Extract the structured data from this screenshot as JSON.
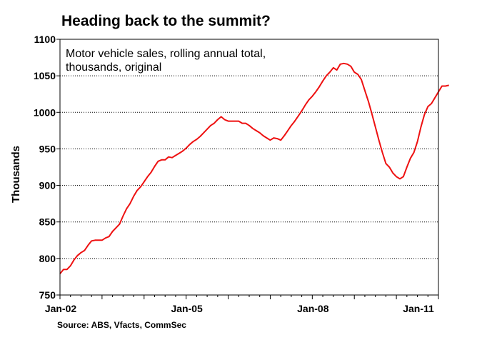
{
  "chart_data": {
    "type": "line",
    "title": "Heading back to the summit?",
    "subtitle_lines": [
      "Motor vehicle sales, rolling annual total,",
      "thousands, original"
    ],
    "xlabel": "",
    "ylabel": "Thousands",
    "source": "Source:  ABS, Vfacts, CommSec",
    "ylim": [
      750,
      1100
    ],
    "yticks": [
      750,
      800,
      850,
      900,
      950,
      1000,
      1050,
      1100
    ],
    "xlim": [
      "2002-01",
      "2011-01"
    ],
    "xticks": [
      {
        "label": "Jan-02",
        "date": "2002-01"
      },
      {
        "label": "Jan-05",
        "date": "2005-01"
      },
      {
        "label": "Jan-08",
        "date": "2008-01"
      },
      {
        "label": "Jan-11",
        "date": "2011-01"
      }
    ],
    "grid": {
      "horizontal": true,
      "vertical": false
    },
    "colors": {
      "line": "#ee1111",
      "grid": "#000000",
      "frame": "#000000"
    },
    "series": [
      {
        "color": "#ee1111",
        "points": [
          [
            "2002-01",
            779
          ],
          [
            "2002-02",
            785
          ],
          [
            "2002-03",
            785
          ],
          [
            "2002-04",
            790
          ],
          [
            "2002-05",
            798
          ],
          [
            "2002-06",
            804
          ],
          [
            "2002-07",
            808
          ],
          [
            "2002-08",
            811
          ],
          [
            "2002-09",
            818
          ],
          [
            "2002-10",
            824
          ],
          [
            "2002-11",
            825
          ],
          [
            "2002-12",
            825
          ],
          [
            "2003-01",
            825
          ],
          [
            "2003-02",
            828
          ],
          [
            "2003-03",
            830
          ],
          [
            "2003-04",
            837
          ],
          [
            "2003-05",
            842
          ],
          [
            "2003-06",
            847
          ],
          [
            "2003-07",
            858
          ],
          [
            "2003-08",
            868
          ],
          [
            "2003-09",
            875
          ],
          [
            "2003-10",
            885
          ],
          [
            "2003-11",
            893
          ],
          [
            "2003-12",
            898
          ],
          [
            "2004-01",
            905
          ],
          [
            "2004-02",
            912
          ],
          [
            "2004-03",
            918
          ],
          [
            "2004-04",
            926
          ],
          [
            "2004-05",
            933
          ],
          [
            "2004-06",
            935
          ],
          [
            "2004-07",
            935
          ],
          [
            "2004-08",
            939
          ],
          [
            "2004-09",
            938
          ],
          [
            "2004-10",
            941
          ],
          [
            "2004-11",
            944
          ],
          [
            "2004-12",
            947
          ],
          [
            "2005-01",
            951
          ],
          [
            "2005-02",
            956
          ],
          [
            "2005-03",
            960
          ],
          [
            "2005-04",
            963
          ],
          [
            "2005-05",
            967
          ],
          [
            "2005-06",
            972
          ],
          [
            "2005-07",
            977
          ],
          [
            "2005-08",
            982
          ],
          [
            "2005-09",
            985
          ],
          [
            "2005-10",
            990
          ],
          [
            "2005-11",
            994
          ],
          [
            "2005-12",
            990
          ],
          [
            "2006-01",
            988
          ],
          [
            "2006-02",
            988
          ],
          [
            "2006-03",
            988
          ],
          [
            "2006-04",
            988
          ],
          [
            "2006-05",
            985
          ],
          [
            "2006-06",
            985
          ],
          [
            "2006-07",
            982
          ],
          [
            "2006-08",
            978
          ],
          [
            "2006-09",
            975
          ],
          [
            "2006-10",
            972
          ],
          [
            "2006-11",
            968
          ],
          [
            "2006-12",
            965
          ],
          [
            "2007-01",
            962
          ],
          [
            "2007-02",
            965
          ],
          [
            "2007-03",
            964
          ],
          [
            "2007-04",
            962
          ],
          [
            "2007-05",
            968
          ],
          [
            "2007-06",
            975
          ],
          [
            "2007-07",
            982
          ],
          [
            "2007-08",
            988
          ],
          [
            "2007-09",
            995
          ],
          [
            "2007-10",
            1002
          ],
          [
            "2007-11",
            1010
          ],
          [
            "2007-12",
            1017
          ],
          [
            "2008-01",
            1022
          ],
          [
            "2008-02",
            1028
          ],
          [
            "2008-03",
            1035
          ],
          [
            "2008-04",
            1043
          ],
          [
            "2008-05",
            1050
          ],
          [
            "2008-06",
            1055
          ],
          [
            "2008-07",
            1061
          ],
          [
            "2008-08",
            1058
          ],
          [
            "2008-09",
            1066
          ],
          [
            "2008-10",
            1067
          ],
          [
            "2008-11",
            1066
          ],
          [
            "2008-12",
            1063
          ],
          [
            "2009-01",
            1055
          ],
          [
            "2009-02",
            1052
          ],
          [
            "2009-03",
            1045
          ],
          [
            "2009-04",
            1030
          ],
          [
            "2009-05",
            1015
          ],
          [
            "2009-06",
            998
          ],
          [
            "2009-07",
            980
          ],
          [
            "2009-08",
            962
          ],
          [
            "2009-09",
            945
          ],
          [
            "2009-10",
            930
          ],
          [
            "2009-11",
            925
          ],
          [
            "2009-12",
            917
          ],
          [
            "2010-01",
            912
          ],
          [
            "2010-02",
            909
          ],
          [
            "2010-03",
            912
          ],
          [
            "2010-04",
            925
          ],
          [
            "2010-05",
            937
          ],
          [
            "2010-06",
            945
          ],
          [
            "2010-07",
            960
          ],
          [
            "2010-08",
            980
          ],
          [
            "2010-09",
            997
          ],
          [
            "2010-10",
            1008
          ],
          [
            "2010-11",
            1012
          ],
          [
            "2010-12",
            1020
          ],
          [
            "2011-01",
            1028
          ],
          [
            "2011-02",
            1036
          ],
          [
            "2011-03",
            1036
          ],
          [
            "2011-04",
            1037
          ]
        ]
      }
    ]
  }
}
